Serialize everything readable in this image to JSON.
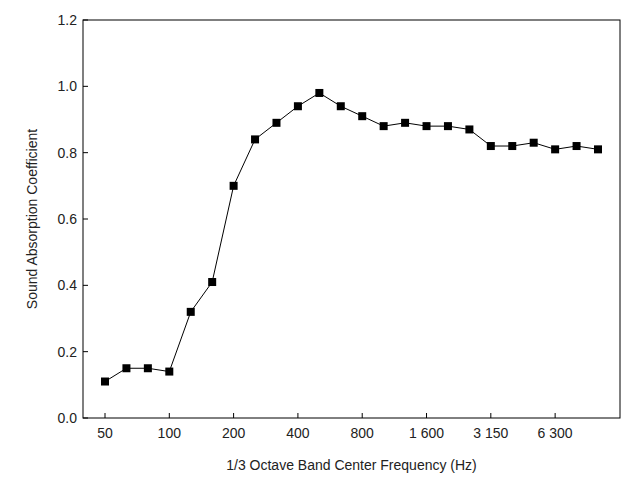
{
  "chart_data": {
    "type": "line",
    "x_label": "1/3 Octave Band Center Frequency (Hz)",
    "y_label": "Sound Absorption Coefficient",
    "categories": [
      "50",
      null,
      null,
      "100",
      null,
      null,
      "200",
      null,
      null,
      "400",
      null,
      null,
      "800",
      null,
      null,
      "1 600",
      null,
      null,
      "3 150",
      null,
      null,
      "6 300",
      null,
      null
    ],
    "series": [
      {
        "color": "#000000",
        "marker": "square",
        "line_style": "solid",
        "values": [
          0.11,
          0.15,
          0.15,
          0.14,
          0.32,
          0.41,
          0.7,
          0.84,
          0.89,
          0.94,
          0.98,
          0.94,
          0.91,
          0.88,
          0.89,
          0.88,
          0.88,
          0.87,
          0.82,
          0.82,
          0.83,
          0.81,
          0.82,
          0.81
        ]
      }
    ],
    "ylim": [
      0,
      1.2
    ],
    "yticks": [
      {
        "value": 0,
        "label": "0.0"
      },
      0.2,
      0.4,
      0.6,
      0.8,
      {
        "value": 1,
        "label": "1.0"
      },
      1.2
    ],
    "grid": false
  }
}
